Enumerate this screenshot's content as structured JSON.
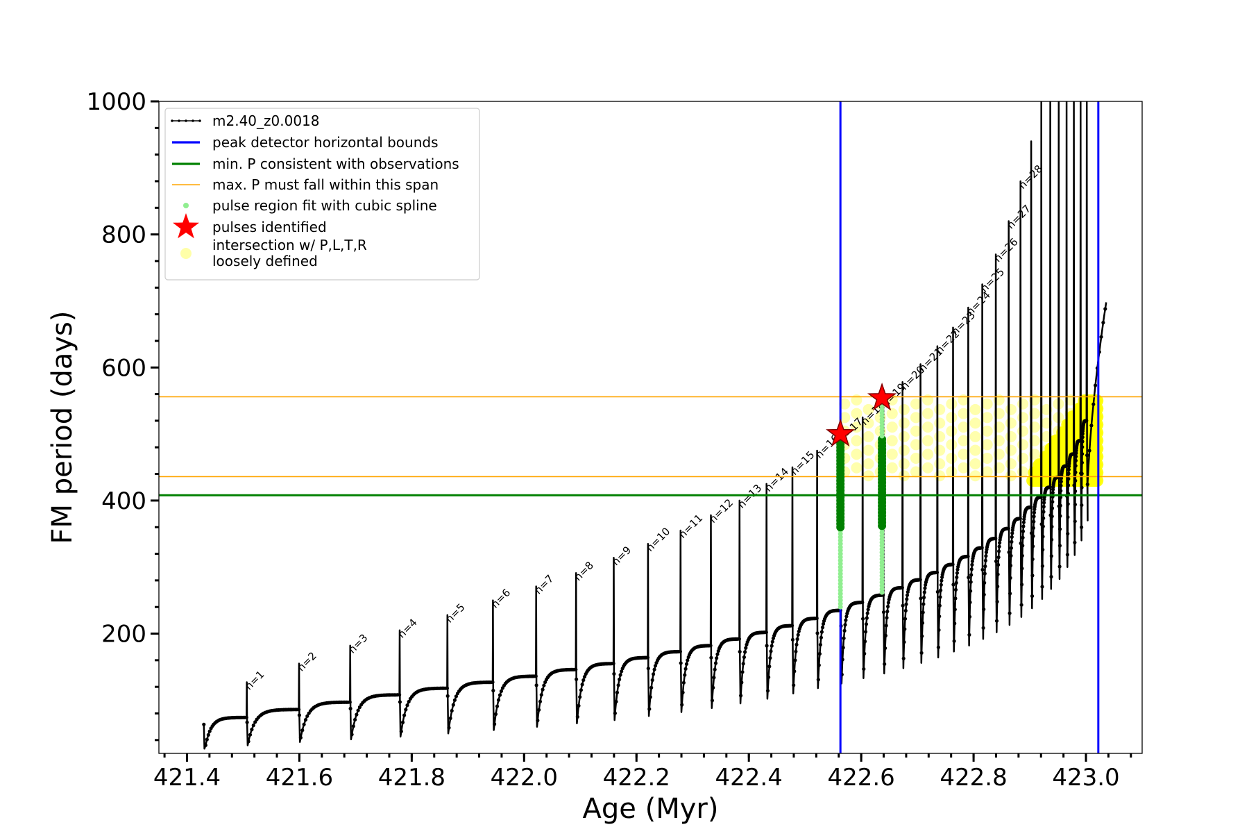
{
  "chart_data": {
    "type": "line",
    "title": "",
    "xlabel": "Age (Myr)",
    "ylabel": "FM period (days)",
    "xlim": [
      421.35,
      423.1
    ],
    "ylim": [
      20,
      1000
    ],
    "x_ticks": [
      {
        "value": 421.4,
        "label": "421.4"
      },
      {
        "value": 421.6,
        "label": "421.6"
      },
      {
        "value": 421.8,
        "label": "421.8"
      },
      {
        "value": 422.0,
        "label": "422.0"
      },
      {
        "value": 422.2,
        "label": "422.2"
      },
      {
        "value": 422.4,
        "label": "422.4"
      },
      {
        "value": 422.6,
        "label": "422.6"
      },
      {
        "value": 422.8,
        "label": "422.8"
      },
      {
        "value": 423.0,
        "label": "423.0"
      }
    ],
    "y_ticks": [
      {
        "value": 200,
        "label": "200"
      },
      {
        "value": 400,
        "label": "400"
      },
      {
        "value": 600,
        "label": "600"
      },
      {
        "value": 800,
        "label": "800"
      },
      {
        "value": 1000,
        "label": "1000"
      }
    ],
    "grid": false,
    "legend_position": "top-left",
    "legend": [
      {
        "label": "m2.40_z0.0018",
        "marker": "line-dots",
        "color": "#000000"
      },
      {
        "label": "peak detector horizontal bounds",
        "marker": "line",
        "color": "#0000ff"
      },
      {
        "label": "min. P consistent with observations",
        "marker": "line",
        "color": "#008000"
      },
      {
        "label": "max. P must fall within this span",
        "marker": "thin-line",
        "color": "#ffa500"
      },
      {
        "label": "pulse region fit with cubic spline",
        "marker": "dot",
        "color": "#90ee90"
      },
      {
        "label": "pulses identified",
        "marker": "star",
        "color": "#ff0000"
      },
      {
        "label": "intersection w/ P,L,T,R\nloosely defined",
        "marker": "circle",
        "color": "#ffff99"
      }
    ],
    "track": {
      "name": "m2.40_z0.0018",
      "color": "#000000",
      "start_age": 421.43,
      "start_floor": 27,
      "pulses": [
        {
          "label": "n=1",
          "age": 421.506,
          "baseline": 74,
          "spike": 127,
          "floor": 32
        },
        {
          "label": "n=2",
          "age": 421.599,
          "baseline": 86,
          "spike": 155,
          "floor": 37
        },
        {
          "label": "n=3",
          "age": 421.69,
          "baseline": 97,
          "spike": 182,
          "floor": 41
        },
        {
          "label": "n=4",
          "age": 421.778,
          "baseline": 108,
          "spike": 205,
          "floor": 45
        },
        {
          "label": "n=5",
          "age": 421.863,
          "baseline": 118,
          "spike": 228,
          "floor": 50
        },
        {
          "label": "n=6",
          "age": 421.944,
          "baseline": 127,
          "spike": 250,
          "floor": 55
        },
        {
          "label": "n=7",
          "age": 422.021,
          "baseline": 136,
          "spike": 271,
          "floor": 60
        },
        {
          "label": "n=8",
          "age": 422.092,
          "baseline": 146,
          "spike": 291,
          "floor": 65
        },
        {
          "label": "n=9",
          "age": 422.159,
          "baseline": 155,
          "spike": 314,
          "floor": 70
        },
        {
          "label": "n=10",
          "age": 422.22,
          "baseline": 164,
          "spike": 335,
          "floor": 76
        },
        {
          "label": "n=11",
          "age": 422.278,
          "baseline": 173,
          "spike": 355,
          "floor": 82
        },
        {
          "label": "n=12",
          "age": 422.332,
          "baseline": 182,
          "spike": 378,
          "floor": 88
        },
        {
          "label": "n=13",
          "age": 422.383,
          "baseline": 192,
          "spike": 400,
          "floor": 95
        },
        {
          "label": "n=14",
          "age": 422.431,
          "baseline": 202,
          "spike": 425,
          "floor": 102
        },
        {
          "label": "n=15",
          "age": 422.477,
          "baseline": 212,
          "spike": 450,
          "floor": 110
        },
        {
          "label": "n=16",
          "age": 422.521,
          "baseline": 223,
          "spike": 475,
          "floor": 118
        },
        {
          "label": "n=17",
          "age": 422.563,
          "baseline": 235,
          "spike": 500,
          "floor": 125
        },
        {
          "label": "n=18",
          "age": 422.602,
          "baseline": 247,
          "spike": 525,
          "floor": 133
        },
        {
          "label": "n=19",
          "age": 422.639,
          "baseline": 258,
          "spike": 552,
          "floor": 140
        },
        {
          "label": "n=20",
          "age": 422.673,
          "baseline": 269,
          "spike": 578,
          "floor": 148
        },
        {
          "label": "n=21",
          "age": 422.705,
          "baseline": 281,
          "spike": 605,
          "floor": 156
        },
        {
          "label": "n=22",
          "age": 422.735,
          "baseline": 292,
          "spike": 632,
          "floor": 164
        },
        {
          "label": "n=23",
          "age": 422.763,
          "baseline": 304,
          "spike": 660,
          "floor": 173
        },
        {
          "label": "n=24",
          "age": 422.79,
          "baseline": 316,
          "spike": 690,
          "floor": 182
        },
        {
          "label": "n=25",
          "age": 422.815,
          "baseline": 329,
          "spike": 725,
          "floor": 192
        },
        {
          "label": "n=26",
          "age": 422.839,
          "baseline": 343,
          "spike": 770,
          "floor": 202
        },
        {
          "label": "n=27",
          "age": 422.862,
          "baseline": 358,
          "spike": 820,
          "floor": 213
        },
        {
          "label": "n=28",
          "age": 422.883,
          "baseline": 373,
          "spike": 880,
          "floor": 225
        },
        {
          "label": "",
          "age": 422.902,
          "baseline": 390,
          "spike": 940,
          "floor": 238
        },
        {
          "label": "",
          "age": 422.92,
          "baseline": 405,
          "spike": 1000,
          "floor": 252
        },
        {
          "label": "",
          "age": 422.936,
          "baseline": 420,
          "spike": 1000,
          "floor": 267
        },
        {
          "label": "",
          "age": 422.951,
          "baseline": 435,
          "spike": 1000,
          "floor": 282
        },
        {
          "label": "",
          "age": 422.965,
          "baseline": 452,
          "spike": 1000,
          "floor": 300
        },
        {
          "label": "",
          "age": 422.978,
          "baseline": 470,
          "spike": 1000,
          "floor": 318
        },
        {
          "label": "",
          "age": 422.99,
          "baseline": 490,
          "spike": 1000,
          "floor": 340
        },
        {
          "label": "",
          "age": 423.001,
          "baseline": 520,
          "spike": 1000,
          "floor": 370
        }
      ],
      "end_age": 423.036,
      "end_value": 698
    },
    "peak_bounds_x": [
      422.563,
      423.022
    ],
    "min_period": 408,
    "max_period_span": [
      436,
      556
    ],
    "spline_regions": [
      {
        "age": 422.563,
        "y_from": 240,
        "y_to": 500
      },
      {
        "age": 422.637,
        "y_from": 262,
        "y_to": 548
      }
    ],
    "pulses_identified": [
      {
        "age": 422.563,
        "period": 500
      },
      {
        "age": 422.637,
        "period": 554
      }
    ],
    "intersection_region": {
      "x": [
        422.56,
        423.025
      ],
      "y": [
        436,
        556
      ]
    },
    "dense_intersection_region": {
      "x": [
        422.905,
        423.02
      ],
      "y": [
        430,
        556
      ]
    }
  }
}
